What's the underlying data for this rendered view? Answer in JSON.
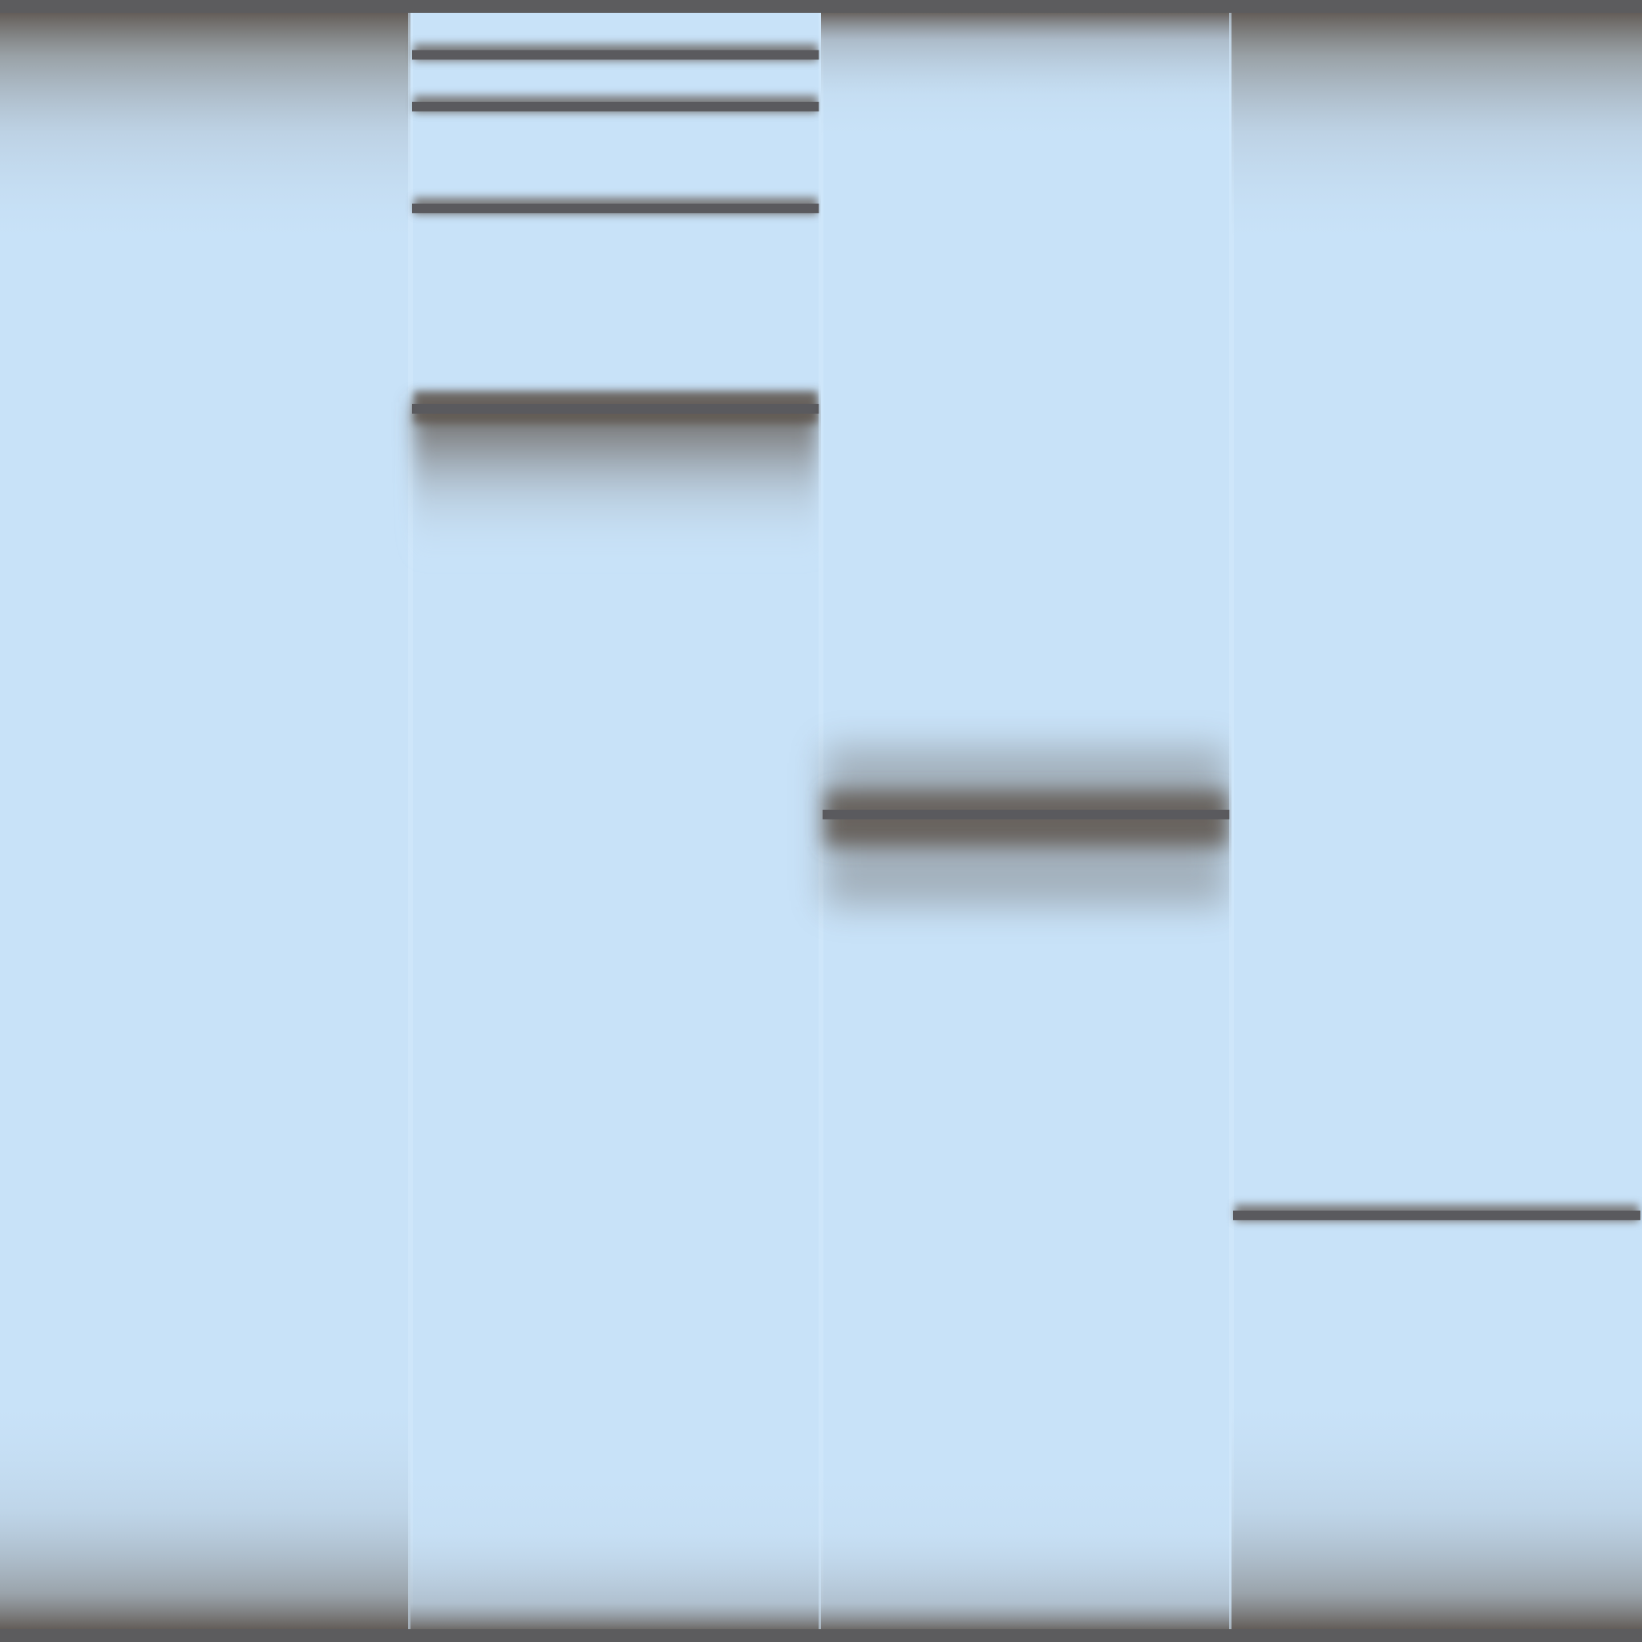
{
  "gel": {
    "colors": {
      "frame": "#5c5c5e",
      "lane_background": "#c8e2f8",
      "lane_highlight": "#d4eafc",
      "band_line": "#5a5a5e",
      "band_smear": "#5e5650"
    },
    "lanes": [
      {
        "index": 1,
        "bands": [],
        "smears": [
          "top-heavy",
          "bottom-heavy"
        ]
      },
      {
        "index": 2,
        "bands": [
          {
            "level": 0.026,
            "intensity": "sharp"
          },
          {
            "level": 0.058,
            "intensity": "sharp"
          },
          {
            "level": 0.121,
            "intensity": "sharp"
          },
          {
            "level": 0.245,
            "intensity": "strong-with-tail"
          }
        ],
        "smears": [
          "bottom-light"
        ]
      },
      {
        "index": 3,
        "bands": [
          {
            "level": 0.496,
            "intensity": "diffuse-strong"
          }
        ],
        "smears": [
          "top-light",
          "bottom-light"
        ]
      },
      {
        "index": 4,
        "bands": [
          {
            "level": 0.744,
            "intensity": "sharp"
          }
        ],
        "smears": [
          "top-heavy",
          "bottom-heavy"
        ]
      }
    ]
  }
}
